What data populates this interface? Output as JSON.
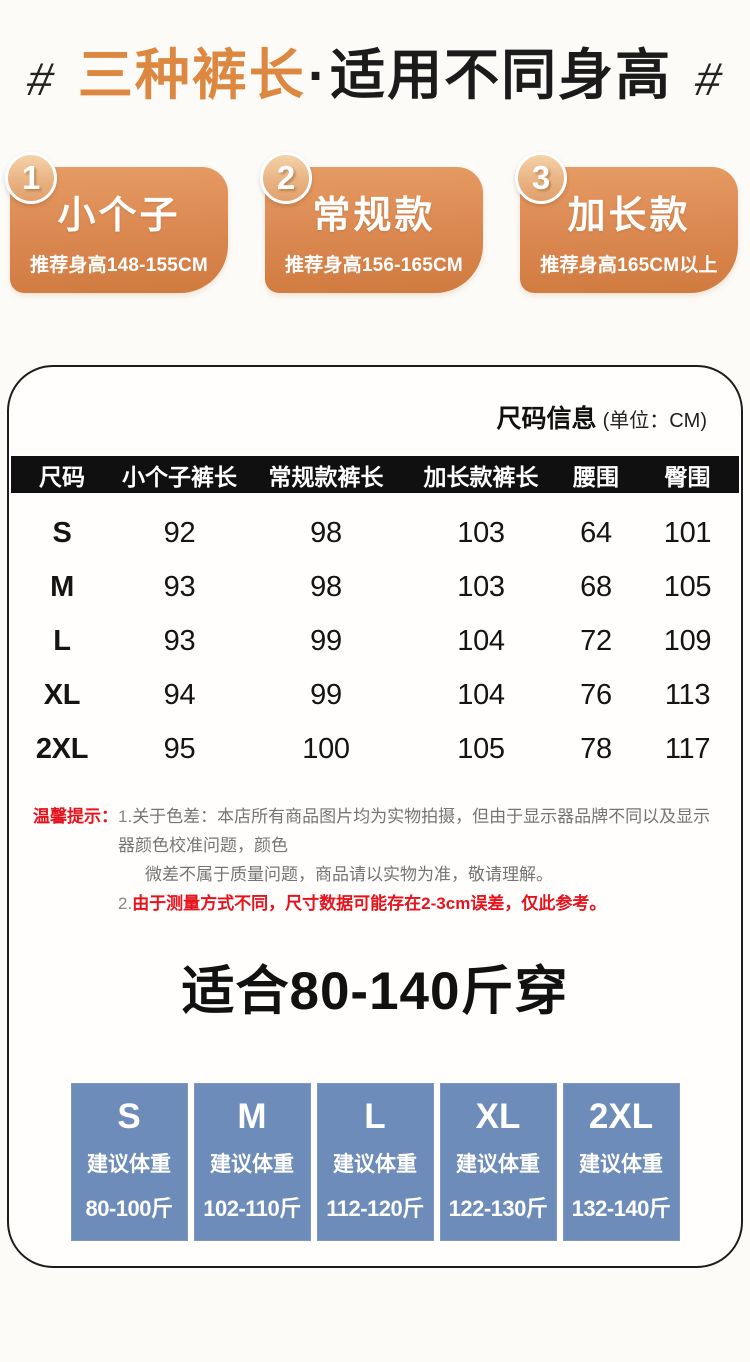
{
  "header": {
    "hash_left": "#",
    "hash_right": "#",
    "title_orange": "三种裤长",
    "title_dot": "·",
    "title_black": "适用不同身高"
  },
  "variants": [
    {
      "number": "1",
      "name": "小个子",
      "height": "推荐身高148-155CM"
    },
    {
      "number": "2",
      "name": "常规款",
      "height": "推荐身高156-165CM"
    },
    {
      "number": "3",
      "name": "加长款",
      "height": "推荐身高165CM以上"
    }
  ],
  "panel": {
    "title": "尺码信息",
    "unit": "(单位：CM)",
    "table": {
      "headers": [
        "尺码",
        "小个子裤长",
        "常规款裤长",
        "加长款裤长",
        "腰围",
        "臀围"
      ],
      "rows": [
        {
          "size": "S",
          "cells": [
            "92",
            "98",
            "103",
            "64",
            "101"
          ]
        },
        {
          "size": "M",
          "cells": [
            "93",
            "98",
            "103",
            "68",
            "105"
          ]
        },
        {
          "size": "L",
          "cells": [
            "93",
            "99",
            "104",
            "72",
            "109"
          ]
        },
        {
          "size": "XL",
          "cells": [
            "94",
            "99",
            "104",
            "76",
            "113"
          ]
        },
        {
          "size": "2XL",
          "cells": [
            "95",
            "100",
            "105",
            "78",
            "117"
          ]
        }
      ]
    },
    "notice": {
      "label": "温馨提示：",
      "line1_prefix": "1.",
      "line1": "关于色差：本店所有商品图片均为实物拍摄，但由于显示器品牌不同以及显示器颜色校准问题，颜色",
      "line2": "微差不属于质量问题，商品请以实物为准，敬请理解。",
      "line3_prefix": "2.",
      "line3": "由于测量方式不同，尺寸数据可能存在2-3cm误差，仅此参考。"
    },
    "fit_title": "适合80-140斤穿",
    "weight_cards": [
      {
        "size": "S",
        "label": "建议体重",
        "range": "80-100斤"
      },
      {
        "size": "M",
        "label": "建议体重",
        "range": "102-110斤"
      },
      {
        "size": "L",
        "label": "建议体重",
        "range": "112-120斤"
      },
      {
        "size": "XL",
        "label": "建议体重",
        "range": "122-130斤"
      },
      {
        "size": "2XL",
        "label": "建议体重",
        "range": "132-140斤"
      }
    ]
  },
  "colors": {
    "accent_orange": "#dd8840",
    "card_orange": "#d98550",
    "circle_orange": "#e9b383",
    "bar_black": "#101010",
    "notice_red": "#e8121c",
    "notice_gray": "#777572",
    "weight_blue": "#6d8cb9",
    "panel_border": "#1c1c1c"
  }
}
